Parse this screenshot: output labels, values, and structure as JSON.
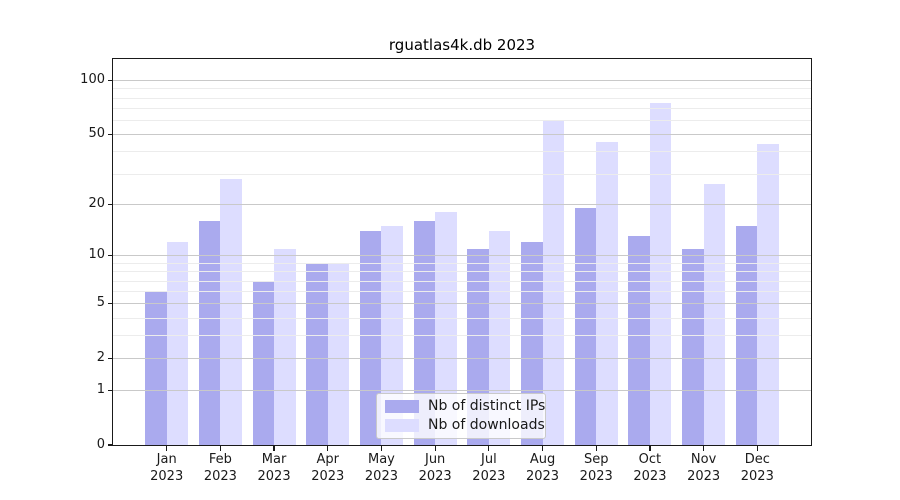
{
  "chart_data": {
    "type": "bar",
    "title": "rguatlas4k.db 2023",
    "categories": [
      "Jan",
      "Feb",
      "Mar",
      "Apr",
      "May",
      "Jun",
      "Jul",
      "Aug",
      "Sep",
      "Oct",
      "Nov",
      "Dec"
    ],
    "category_year": "2023",
    "series": [
      {
        "name": "Nb of distinct IPs",
        "color": "#aaaaee",
        "values": [
          6,
          16,
          7,
          9,
          14,
          16,
          11,
          12,
          19,
          13,
          11,
          15
        ]
      },
      {
        "name": "Nb of downloads",
        "color": "#ddddff",
        "values": [
          12,
          28,
          11,
          9,
          15,
          18,
          14,
          59,
          45,
          75,
          26,
          44
        ]
      }
    ],
    "y_scale": "log10(1+value)",
    "y_ticks": [
      100,
      50,
      20,
      10,
      5,
      2,
      1,
      0
    ],
    "y_minor_gridlines": [
      3,
      4,
      6,
      7,
      8,
      9,
      30,
      40,
      60,
      70,
      80,
      90
    ],
    "ylim": [
      0,
      131
    ],
    "grid": true,
    "grid_above_bars": true,
    "legend_position": "lower center",
    "colors": {
      "major_grid": "#c9c9c9",
      "minor_grid": "#ececec",
      "axis": "#1a1a1a",
      "background": "#ffffff"
    }
  }
}
